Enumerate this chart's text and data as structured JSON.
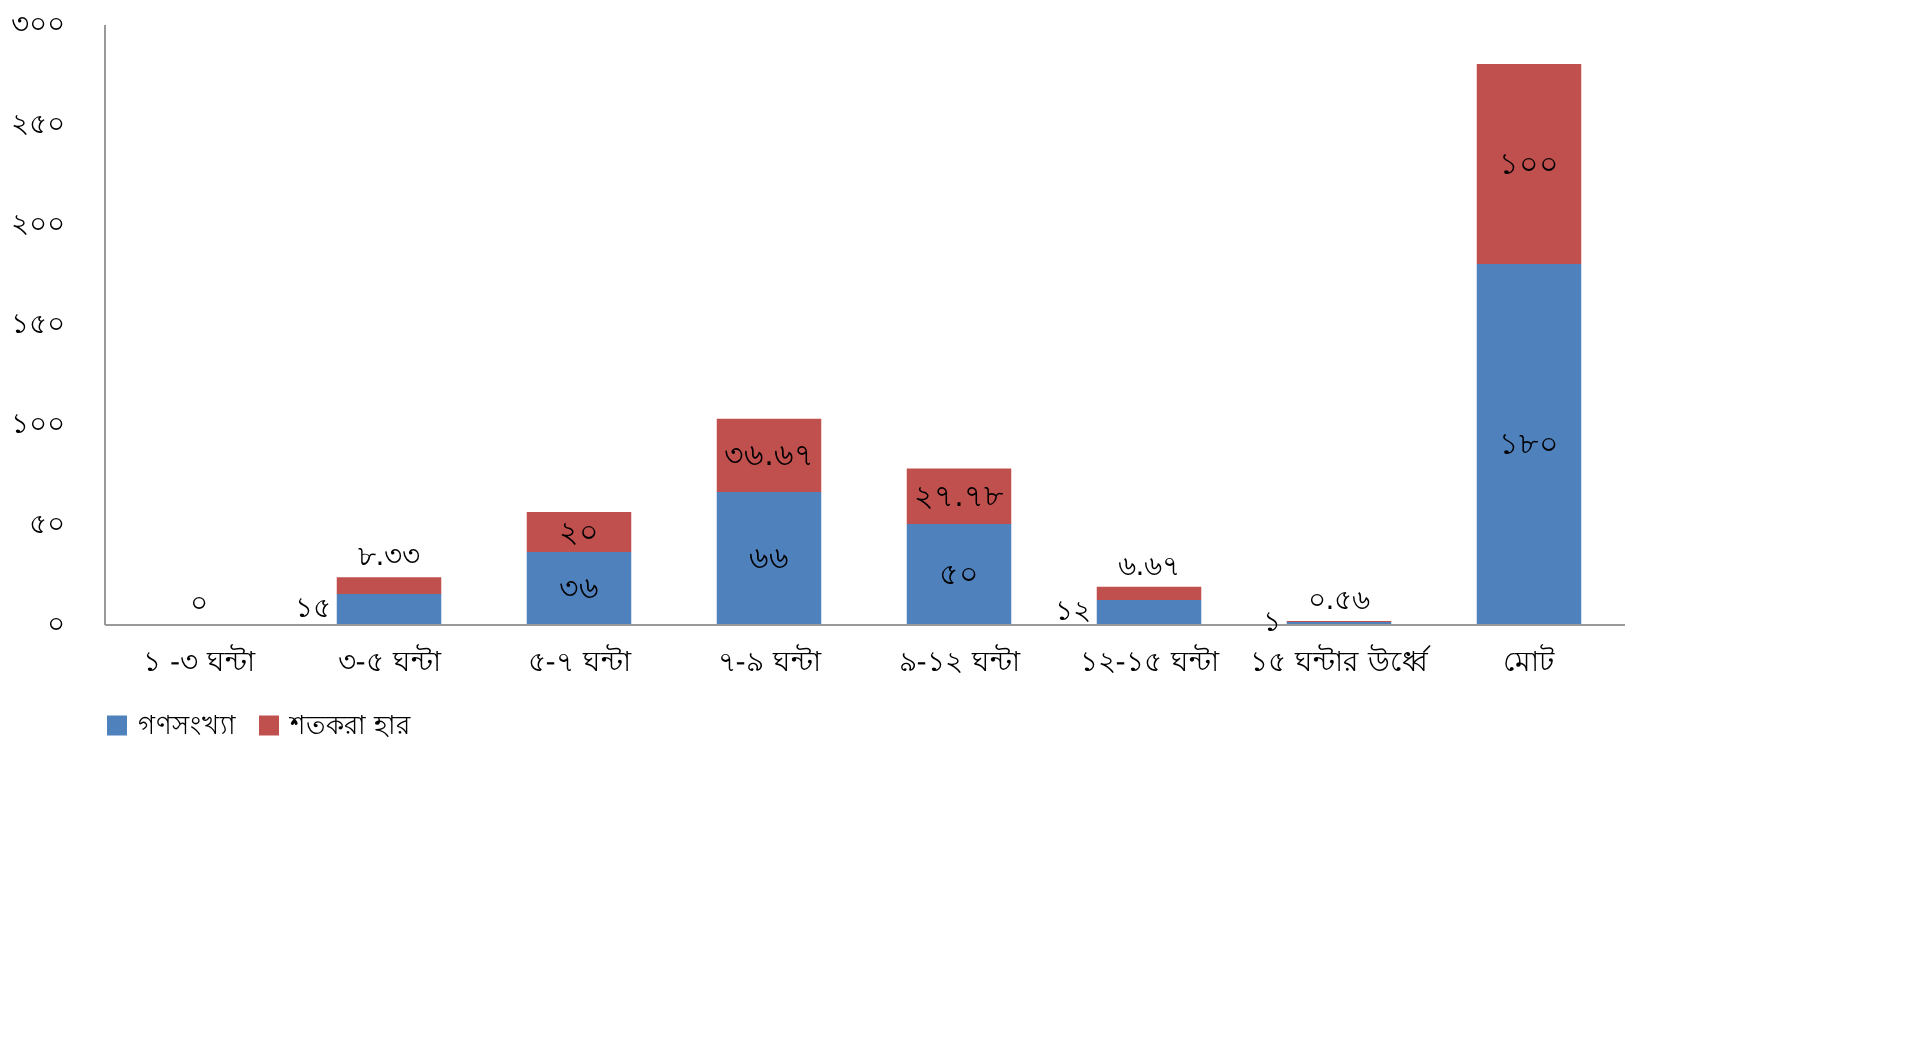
{
  "chart_data": {
    "type": "bar",
    "stacked": true,
    "categories": [
      "১ -৩ ঘন্টা",
      "৩-৫ ঘন্টা",
      "৫-৭ ঘন্টা",
      "৭-৯ ঘন্টা",
      "৯-১২ ঘন্টা",
      "১২-১৫ ঘন্টা",
      "১৫ ঘন্টার উর্ধ্বে",
      "মোট"
    ],
    "series": [
      {
        "name": "গণসংখ্যা",
        "color": "#4f81bd",
        "values": [
          0,
          15,
          36,
          66,
          50,
          12,
          1,
          180
        ],
        "value_labels": [
          null,
          "১৫",
          "৩৬",
          "৬৬",
          "৫০",
          "১২",
          "১",
          "১৮০"
        ]
      },
      {
        "name": "শতকরা হার",
        "color": "#c0504d",
        "values": [
          0,
          8.33,
          20,
          36.67,
          27.78,
          6.67,
          0.56,
          100
        ],
        "value_labels": [
          "০",
          "৮.৩৩",
          "২০",
          "৩৬.৬৭",
          "২৭.৭৮",
          "৬.৬৭",
          "০.৫৬",
          "১০০"
        ]
      }
    ],
    "ylim": [
      0,
      300
    ],
    "yticks": [
      {
        "value": 0,
        "label": "০"
      },
      {
        "value": 50,
        "label": "৫০"
      },
      {
        "value": 100,
        "label": "১০০"
      },
      {
        "value": 150,
        "label": "১৫০"
      },
      {
        "value": 200,
        "label": "২০০"
      },
      {
        "value": 250,
        "label": "২৫০"
      },
      {
        "value": 300,
        "label": "৩০০"
      }
    ],
    "grid": false,
    "legend": "bottom"
  }
}
